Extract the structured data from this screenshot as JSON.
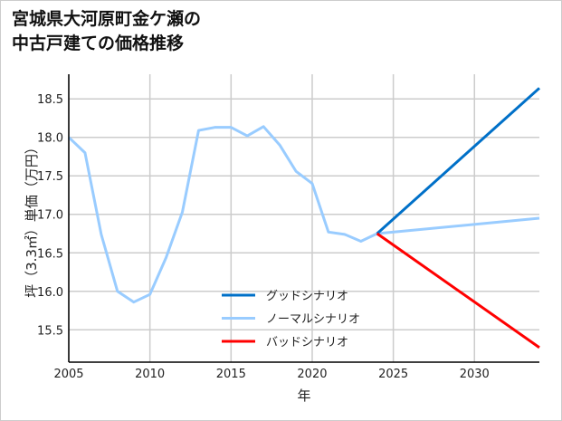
{
  "chart_data": {
    "type": "line",
    "title": [
      "宮城県大河原町金ケ瀬の",
      "中古戸建ての価格推移"
    ],
    "xlabel": "年",
    "ylabel": "坪（3.3㎡）単価（万円）",
    "xlim": [
      2005,
      2034
    ],
    "ylim": [
      15.08,
      18.82
    ],
    "xticks": [
      2005,
      2010,
      2015,
      2020,
      2025,
      2030
    ],
    "yticks": [
      15.5,
      16.0,
      16.5,
      17.0,
      17.5,
      18.0,
      18.5
    ],
    "grid": true,
    "legend_position": "bottom-center",
    "series": [
      {
        "name": "グッドシナリオ",
        "color": "#0070c8",
        "x": [
          2024,
          2034
        ],
        "y": [
          16.75,
          18.64
        ]
      },
      {
        "name": "ノーマルシナリオ",
        "color": "#99ccff",
        "x": [
          2005,
          2006,
          2007,
          2008,
          2009,
          2010,
          2011,
          2012,
          2013,
          2014,
          2015,
          2016,
          2017,
          2018,
          2019,
          2020,
          2021,
          2022,
          2023,
          2024,
          2034
        ],
        "y": [
          18.0,
          17.8,
          16.74,
          16.0,
          15.86,
          15.96,
          16.44,
          17.03,
          18.09,
          18.13,
          18.13,
          18.02,
          18.14,
          17.9,
          17.56,
          17.4,
          16.77,
          16.74,
          16.65,
          16.75,
          16.95
        ]
      },
      {
        "name": "バッドシナリオ",
        "color": "#ff0000",
        "x": [
          2024,
          2034
        ],
        "y": [
          16.75,
          15.27
        ]
      }
    ]
  }
}
